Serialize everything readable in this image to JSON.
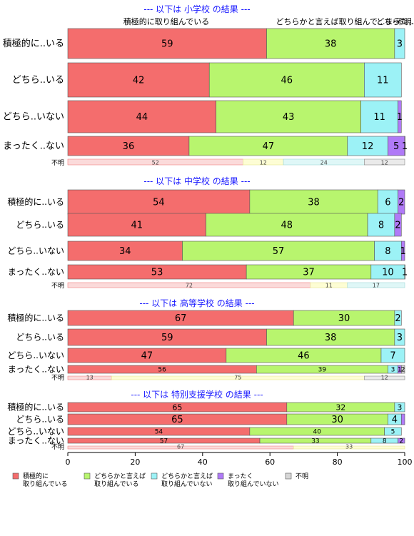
{
  "chart_data": {
    "type": "bar",
    "orientation": "horizontal-stacked-percent",
    "x_range": [
      0,
      100
    ],
    "x_ticks": [
      "0",
      "20",
      "40",
      "60",
      "80",
      "100"
    ],
    "series": [
      {
        "name": "積極的に\n取り組んでいる",
        "color": "#F46D6D"
      },
      {
        "name": "どちらかと言えば\n取り組んでいる",
        "color": "#B8F56E"
      },
      {
        "name": "どちらかと言えば\n取り組んでいない",
        "color": "#9CF2F6"
      },
      {
        "name": "まったく\n取り組んでいない",
        "color": "#B07AF7"
      },
      {
        "name": "不明",
        "color": "#D6D6D6"
      }
    ],
    "legend_position": "bottom",
    "top_header_labels": [
      "積極的に取り組んでいる",
      "どちらかと言えば取り組んで...",
      "どちら...",
      "まった...",
      "不明..."
    ],
    "unknown_row_label": "不明",
    "groups": [
      {
        "title": "--- 以下は 小学校 の結果 ---",
        "categories": [
          "積極的に..いる",
          "どちら..いる",
          "どちら..いない",
          "まったく..ない"
        ],
        "values": [
          [
            59,
            38,
            3,
            0,
            0
          ],
          [
            42,
            46,
            11,
            0,
            0
          ],
          [
            44,
            43,
            11,
            1,
            0
          ],
          [
            36,
            47,
            12,
            5,
            1
          ]
        ],
        "value_labels": [
          [
            "59",
            "38",
            "3",
            "",
            ""
          ],
          [
            "42",
            "46",
            "11",
            "",
            ""
          ],
          [
            "44",
            "43",
            "11",
            "1",
            ""
          ],
          [
            "36",
            "47",
            "12",
            "5",
            "1"
          ]
        ],
        "unknown_row": {
          "values": [
            52,
            12,
            24,
            12
          ],
          "labels": [
            "52",
            "12",
            "24",
            "12"
          ]
        }
      },
      {
        "title": "--- 以下は 中学校 の結果 ---",
        "categories": [
          "積極的に..いる",
          "どちら..いる",
          "どちら..いない",
          "まったく..ない"
        ],
        "values": [
          [
            54,
            38,
            6,
            2,
            0
          ],
          [
            41,
            48,
            8,
            2,
            0
          ],
          [
            34,
            57,
            8,
            1,
            0
          ],
          [
            53,
            37,
            10,
            0.5,
            0
          ]
        ],
        "value_labels": [
          [
            "54",
            "38",
            "6",
            "2",
            ""
          ],
          [
            "41",
            "48",
            "8",
            "2",
            ""
          ],
          [
            "34",
            "57",
            "8",
            "1",
            ""
          ],
          [
            "53",
            "37",
            "10",
            "1",
            ""
          ]
        ],
        "unknown_row": {
          "values": [
            72,
            11,
            17,
            0
          ],
          "labels": [
            "72",
            "11",
            "17",
            ""
          ]
        }
      },
      {
        "title": "--- 以下は 高等学校 の結果 ---",
        "categories": [
          "積極的に..いる",
          "どちら..いる",
          "どちら..いない",
          "まったく..ない"
        ],
        "values": [
          [
            67,
            30,
            2,
            0,
            0
          ],
          [
            59,
            38,
            3,
            0,
            0
          ],
          [
            47,
            46,
            7,
            0,
            0
          ],
          [
            56,
            39,
            3,
            1,
            2
          ]
        ],
        "value_labels": [
          [
            "67",
            "30",
            "2",
            "",
            ""
          ],
          [
            "59",
            "38",
            "3",
            "",
            ""
          ],
          [
            "47",
            "46",
            "7",
            "",
            ""
          ],
          [
            "56",
            "39",
            "3",
            "1",
            "2"
          ]
        ],
        "unknown_row": {
          "values": [
            13,
            75,
            0,
            12
          ],
          "labels": [
            "13",
            "75",
            "",
            "12"
          ]
        }
      },
      {
        "title": "--- 以下は 特別支援学校 の結果 ---",
        "categories": [
          "積極的に..いる",
          "どちら..いる",
          "どちら..いない",
          "まったく..ない"
        ],
        "values": [
          [
            65,
            32,
            3,
            0,
            0
          ],
          [
            65,
            30,
            4,
            1,
            0
          ],
          [
            54,
            40,
            5,
            0,
            0
          ],
          [
            57,
            33,
            8,
            2,
            0
          ]
        ],
        "value_labels": [
          [
            "65",
            "32",
            "3",
            "",
            ""
          ],
          [
            "65",
            "30",
            "4",
            "",
            ""
          ],
          [
            "54",
            "40",
            "5",
            "",
            ""
          ],
          [
            "57",
            "33",
            "8",
            "2",
            ""
          ]
        ],
        "unknown_row": {
          "values": [
            67,
            33,
            0,
            0
          ],
          "labels": [
            "67",
            "33",
            "",
            ""
          ]
        }
      }
    ]
  }
}
